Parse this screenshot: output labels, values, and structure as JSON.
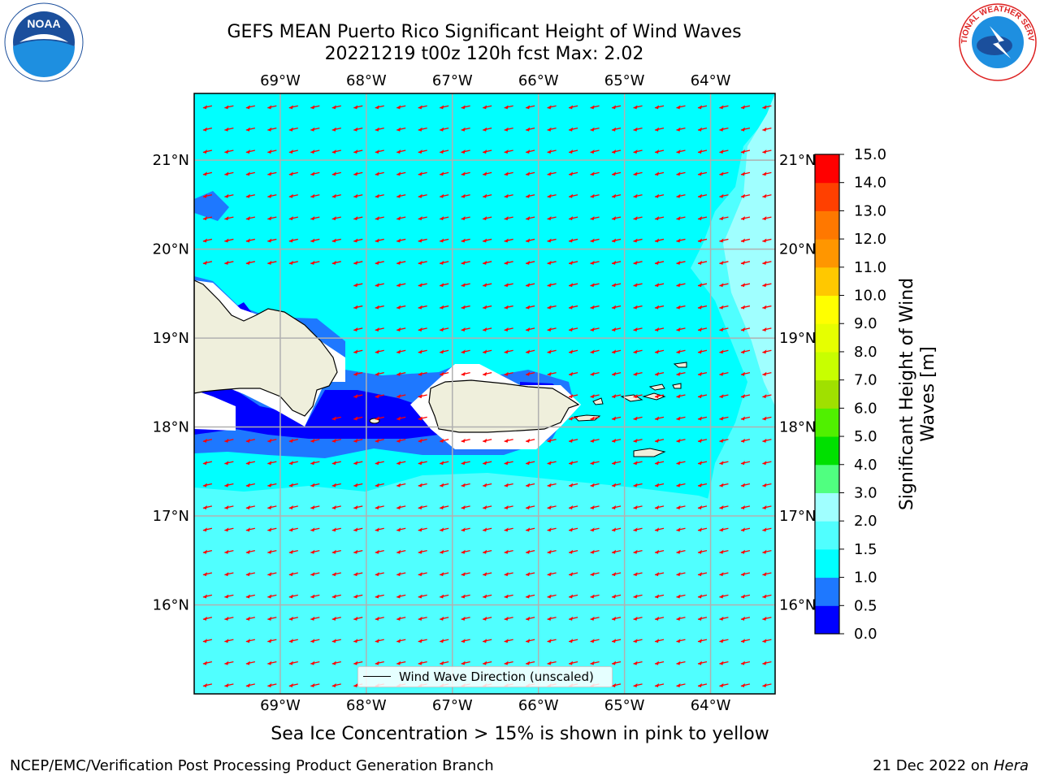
{
  "title": {
    "line1": "GEFS MEAN Puerto Rico Significant Height of Wind Waves",
    "line2": "20221219 t00z 120h fcst   Max: 2.02"
  },
  "logos": {
    "left": "noaa-logo",
    "left_text": "NOAA",
    "right": "nws-logo",
    "right_text": "NATIONAL WEATHER SERVICE"
  },
  "map": {
    "lon_range": [
      -70,
      -63.25
    ],
    "lat_range": [
      15,
      21.75
    ],
    "lon_ticks": [
      "69°W",
      "68°W",
      "67°W",
      "66°W",
      "65°W",
      "64°W"
    ],
    "lon_values": [
      -69,
      -68,
      -67,
      -66,
      -65,
      -64
    ],
    "lat_ticks": [
      "16°N",
      "17°N",
      "18°N",
      "19°N",
      "20°N",
      "21°N"
    ],
    "lat_values": [
      16,
      17,
      18,
      19,
      20,
      21
    ],
    "grid": true,
    "arrow_color": "#ff0000",
    "land_color": "#efefdc",
    "legend_label": "Wind Wave Direction (unscaled)",
    "legend_placement": "bottom-center"
  },
  "colorbar": {
    "label": "Significant Height of Wind Waves [m]",
    "label_line1": "Significant Height of Wind",
    "label_line2": "Waves [m]",
    "ticks": [
      "0.0",
      "0.5",
      "1.0",
      "1.5",
      "2.0",
      "3.0",
      "4.0",
      "5.0",
      "6.0",
      "7.0",
      "8.0",
      "9.0",
      "10.0",
      "11.0",
      "12.0",
      "13.0",
      "14.0",
      "15.0"
    ],
    "colors": [
      "#0000ff",
      "#1e78ff",
      "#00ffff",
      "#50ffff",
      "#a0ffff",
      "#50ff80",
      "#00e000",
      "#50f000",
      "#a0e000",
      "#c8ff00",
      "#e6ff00",
      "#ffff00",
      "#ffc800",
      "#ff9600",
      "#ff7800",
      "#ff4000",
      "#ff0000"
    ]
  },
  "footer": {
    "sea_ice_note": "Sea Ice Concentration > 15% is shown in pink to yellow",
    "credit_left": "NCEP/EMC/Verification Post Processing Product Generation Branch",
    "credit_right_date": "21 Dec 2022 on",
    "credit_right_host": "Hera"
  }
}
